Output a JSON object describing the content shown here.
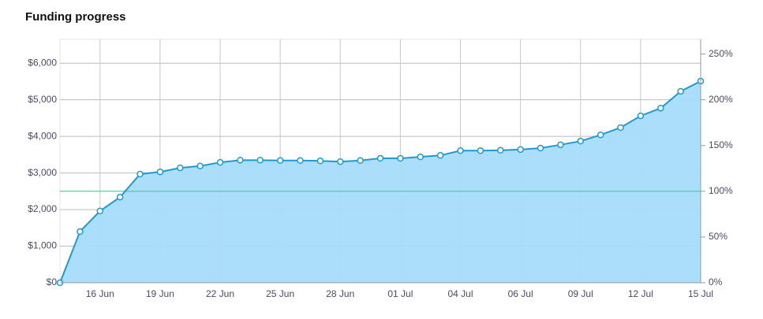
{
  "chart_data": {
    "type": "area",
    "title": "Funding progress",
    "categories": [
      null,
      null,
      "16 Jun",
      null,
      null,
      "19 Jun",
      null,
      null,
      "22 Jun",
      null,
      null,
      "25 Jun",
      null,
      null,
      "28 Jun",
      null,
      null,
      "01 Jul",
      null,
      null,
      "04 Jul",
      null,
      null,
      "06 Jul",
      null,
      null,
      "09 Jul",
      null,
      null,
      "12 Jul",
      null,
      null,
      "15 Jul"
    ],
    "values": [
      0,
      1400,
      1960,
      2340,
      2970,
      3030,
      3140,
      3190,
      3290,
      3350,
      3350,
      3340,
      3340,
      3330,
      3310,
      3340,
      3400,
      3400,
      3440,
      3480,
      3610,
      3610,
      3620,
      3640,
      3680,
      3770,
      3870,
      4040,
      4240,
      4560,
      4770,
      5230,
      5510
    ],
    "color": "#1e9ad6",
    "fill": "#a6dcfb",
    "reference_line": {
      "value": 2500,
      "color": "#3fcf8e"
    },
    "ylim": [
      0,
      6650
    ],
    "yticks": [
      {
        "value": 0,
        "label": "$0"
      },
      {
        "value": 1000,
        "label": "$1,000"
      },
      {
        "value": 2000,
        "label": "$2,000"
      },
      {
        "value": 3000,
        "label": "$3,000"
      },
      {
        "value": 4000,
        "label": "$4,000"
      },
      {
        "value": 5000,
        "label": "$5,000"
      },
      {
        "value": 6000,
        "label": "$6,000"
      }
    ],
    "y2lim": [
      0,
      266
    ],
    "y2ticks": [
      {
        "value": 0,
        "label": "0%"
      },
      {
        "value": 50,
        "label": "50%"
      },
      {
        "value": 100,
        "label": "100%"
      },
      {
        "value": 150,
        "label": "150%"
      },
      {
        "value": 200,
        "label": "200%"
      },
      {
        "value": 250,
        "label": "250%"
      }
    ],
    "grid": true
  }
}
